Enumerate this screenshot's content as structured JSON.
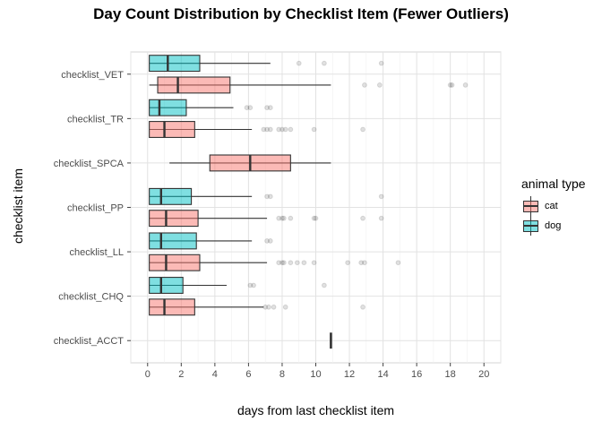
{
  "chart_data": {
    "type": "boxplot",
    "orientation": "horizontal",
    "title": "Day Count Distribution by Checklist Item (Fewer Outliers)",
    "xlabel": "days from last checklist item",
    "ylabel": "checklist item",
    "xlim": [
      -1,
      21
    ],
    "xticks": [
      0,
      2,
      4,
      6,
      8,
      10,
      12,
      14,
      16,
      18,
      20
    ],
    "grid": true,
    "categories": [
      "checklist_ACCT",
      "checklist_CHQ",
      "checklist_LL",
      "checklist_PP",
      "checklist_SPCA",
      "checklist_TR",
      "checklist_VET"
    ],
    "legend": {
      "title": "animal type",
      "position": "right",
      "entries": [
        {
          "name": "cat",
          "color": "#F8766D"
        },
        {
          "name": "dog",
          "color": "#00BFC4"
        }
      ]
    },
    "series": [
      {
        "name": "cat",
        "color": "#F8766D",
        "boxes": [
          {
            "category": "checklist_ACCT",
            "whisker_low": 10.9,
            "q1": 10.9,
            "median": 10.9,
            "q3": 10.9,
            "whisker_high": 10.9,
            "outliers": []
          },
          {
            "category": "checklist_CHQ",
            "whisker_low": 0.1,
            "q1": 0.1,
            "median": 1.0,
            "q3": 2.8,
            "whisker_high": 6.9,
            "outliers": [
              7.0,
              7.2,
              7.5,
              8.2,
              12.8
            ]
          },
          {
            "category": "checklist_LL",
            "whisker_low": 0.1,
            "q1": 0.1,
            "median": 1.1,
            "q3": 3.1,
            "whisker_high": 7.1,
            "outliers": [
              7.8,
              8.0,
              8.1,
              8.5,
              8.9,
              9.3,
              9.9,
              11.9,
              12.7,
              12.9,
              14.9
            ]
          },
          {
            "category": "checklist_PP",
            "whisker_low": 0.1,
            "q1": 0.1,
            "median": 1.1,
            "q3": 3.0,
            "whisker_high": 7.1,
            "outliers": [
              7.8,
              8.0,
              8.1,
              8.5,
              9.9,
              10.0,
              12.8,
              13.9
            ]
          },
          {
            "category": "checklist_SPCA",
            "whisker_low": 1.3,
            "q1": 3.7,
            "median": 6.1,
            "q3": 8.5,
            "whisker_high": 10.9,
            "outliers": []
          },
          {
            "category": "checklist_TR",
            "whisker_low": 0.1,
            "q1": 0.1,
            "median": 1.0,
            "q3": 2.8,
            "whisker_high": 6.2,
            "outliers": [
              6.9,
              7.1,
              7.3,
              7.8,
              8.0,
              8.2,
              8.5,
              9.9,
              12.8
            ]
          },
          {
            "category": "checklist_VET",
            "whisker_low": 0.1,
            "q1": 0.6,
            "median": 1.8,
            "q3": 4.9,
            "whisker_high": 10.9,
            "outliers": [
              12.9,
              13.8,
              18.0,
              18.1,
              18.9
            ]
          }
        ]
      },
      {
        "name": "dog",
        "color": "#00BFC4",
        "boxes": [
          {
            "category": "checklist_CHQ",
            "whisker_low": 0.1,
            "q1": 0.1,
            "median": 0.8,
            "q3": 2.1,
            "whisker_high": 4.7,
            "outliers": [
              6.1,
              6.3,
              10.5
            ]
          },
          {
            "category": "checklist_LL",
            "whisker_low": 0.1,
            "q1": 0.1,
            "median": 0.8,
            "q3": 2.9,
            "whisker_high": 6.2,
            "outliers": [
              7.1,
              7.3
            ]
          },
          {
            "category": "checklist_PP",
            "whisker_low": 0.1,
            "q1": 0.1,
            "median": 0.8,
            "q3": 2.6,
            "whisker_high": 6.2,
            "outliers": [
              7.1,
              7.3,
              13.9
            ]
          },
          {
            "category": "checklist_TR",
            "whisker_low": 0.1,
            "q1": 0.1,
            "median": 0.7,
            "q3": 2.3,
            "whisker_high": 5.1,
            "outliers": [
              5.9,
              6.1,
              7.1,
              7.3
            ]
          },
          {
            "category": "checklist_VET",
            "whisker_low": 0.1,
            "q1": 0.1,
            "median": 1.2,
            "q3": 3.1,
            "whisker_high": 7.3,
            "outliers": [
              9.0,
              10.5,
              13.9
            ]
          }
        ]
      }
    ]
  }
}
